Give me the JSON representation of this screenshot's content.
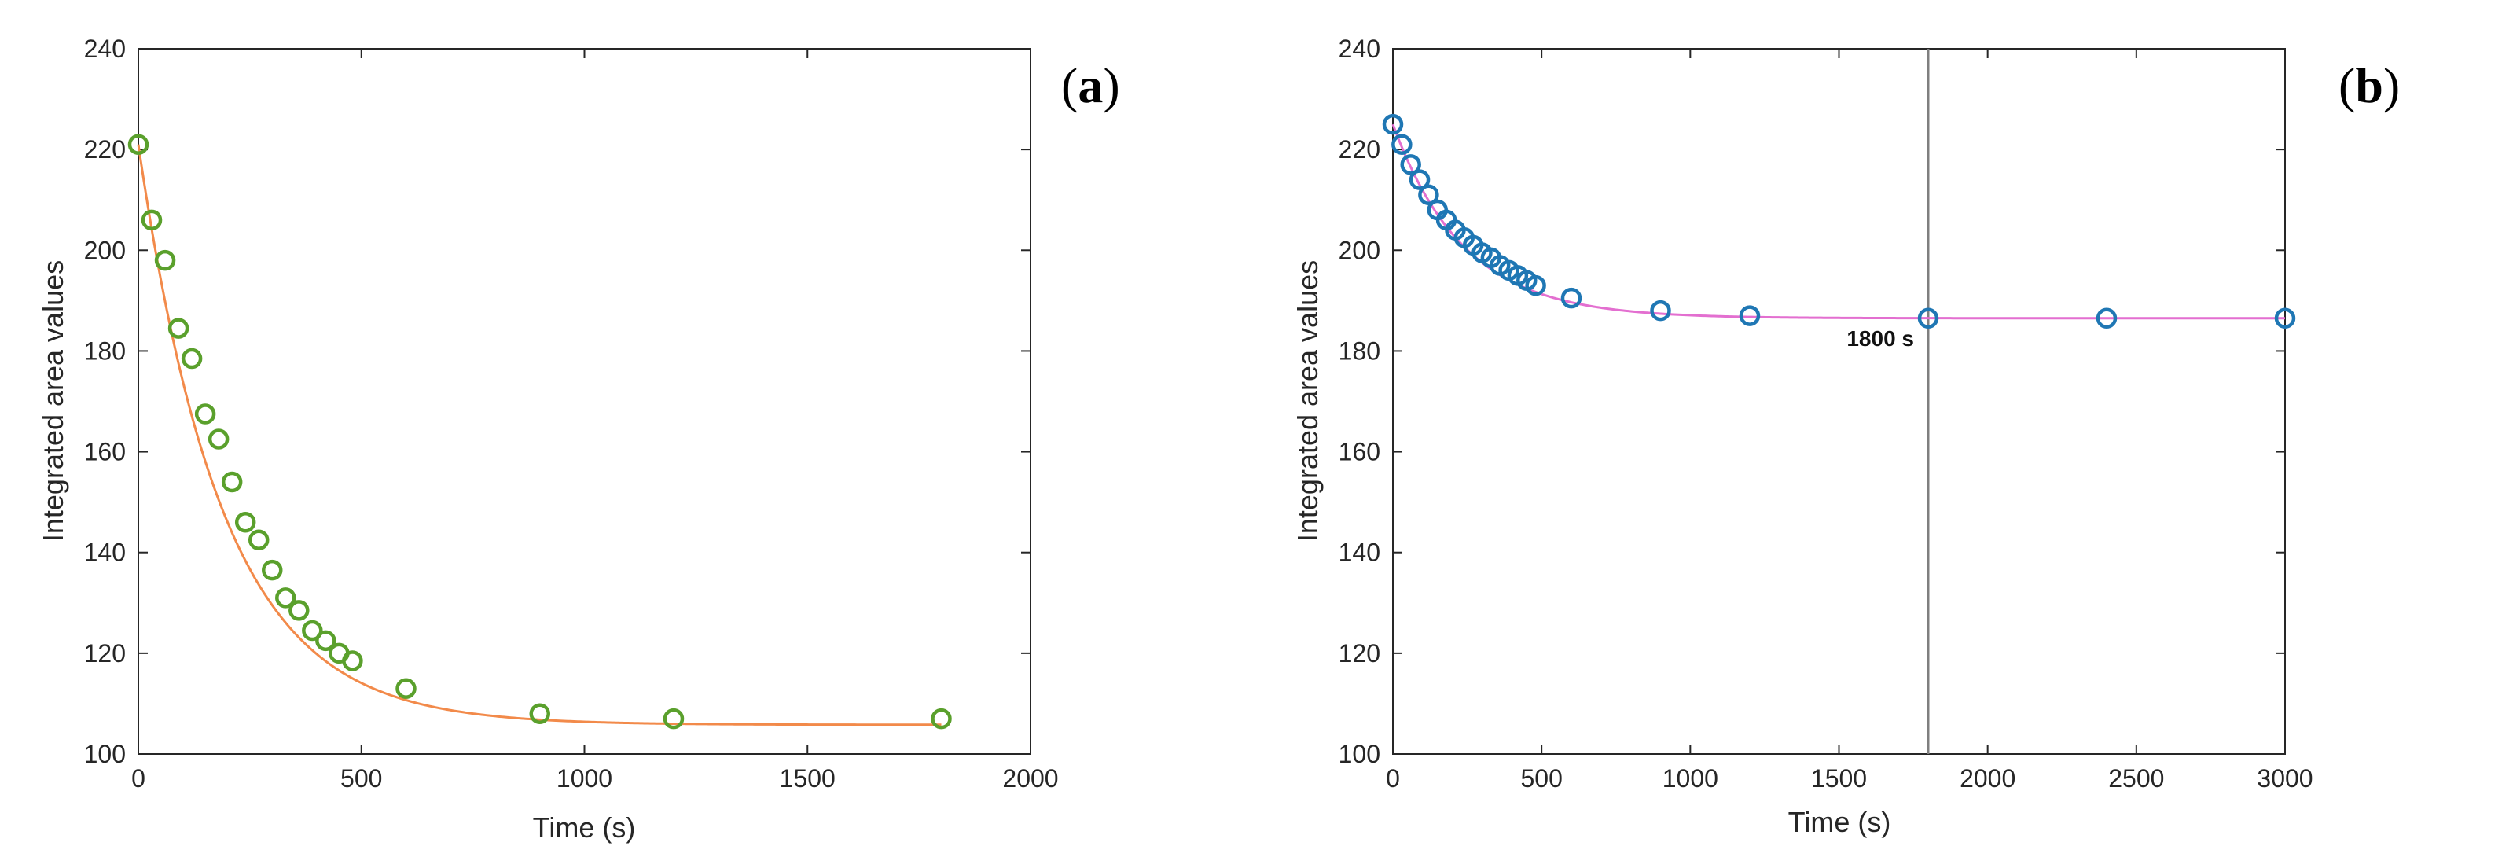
{
  "chart_data": [
    {
      "type": "scatter",
      "panel_label": {
        "open": "(",
        "letter": "a",
        "close": ")"
      },
      "title": "",
      "xlabel": "Time (s)",
      "ylabel": "Integrated area values",
      "xlim": [
        0,
        2000
      ],
      "ylim": [
        100,
        240
      ],
      "xticks": [
        0,
        500,
        1000,
        1500,
        2000
      ],
      "yticks": [
        100,
        120,
        140,
        160,
        180,
        200,
        220,
        240
      ],
      "grid": false,
      "legend": "none",
      "marker_color": "#5aa02c",
      "fit_color": "#f28a4a",
      "points": {
        "x": [
          0,
          30,
          60,
          90,
          120,
          150,
          180,
          210,
          240,
          270,
          300,
          330,
          360,
          390,
          420,
          450,
          480,
          600,
          900,
          1200,
          1800
        ],
        "y": [
          221,
          206,
          198,
          184.5,
          178.5,
          167.5,
          162.5,
          154,
          146,
          142.5,
          136.5,
          131,
          128.5,
          124.5,
          122.5,
          120,
          118.5,
          113,
          108,
          107,
          107
        ]
      },
      "fit": {
        "model": "exponential",
        "y_inf": 105.8,
        "amplitude": 115.2,
        "time_constant": 190
      }
    },
    {
      "type": "scatter",
      "panel_label": {
        "open": "(",
        "letter": "b",
        "close": ")"
      },
      "title": "",
      "xlabel": "Time (s)",
      "ylabel": "Integrated area values",
      "xlim": [
        0,
        3000
      ],
      "ylim": [
        100,
        240
      ],
      "xticks": [
        0,
        500,
        1000,
        1500,
        2000,
        2500,
        3000
      ],
      "yticks": [
        100,
        120,
        140,
        160,
        180,
        200,
        220,
        240
      ],
      "grid": false,
      "legend": "none",
      "marker_color": "#1f77b4",
      "fit_color": "#e36fd0",
      "vline": {
        "x": 1800,
        "label": "1800 s",
        "color": "#7f7f7f"
      },
      "points": {
        "x": [
          0,
          30,
          60,
          90,
          120,
          150,
          180,
          210,
          240,
          270,
          300,
          330,
          360,
          390,
          420,
          450,
          480,
          600,
          900,
          1200,
          1800,
          2400,
          3000
        ],
        "y": [
          225,
          221,
          217,
          214,
          211,
          208,
          206,
          204,
          202.5,
          201,
          199.5,
          198.5,
          197,
          196,
          195,
          194,
          193,
          190.5,
          188,
          187,
          186.5,
          186.5,
          186.5
        ]
      },
      "fit": {
        "model": "exponential",
        "y_inf": 186.5,
        "amplitude": 38.5,
        "time_constant": 240
      }
    }
  ]
}
